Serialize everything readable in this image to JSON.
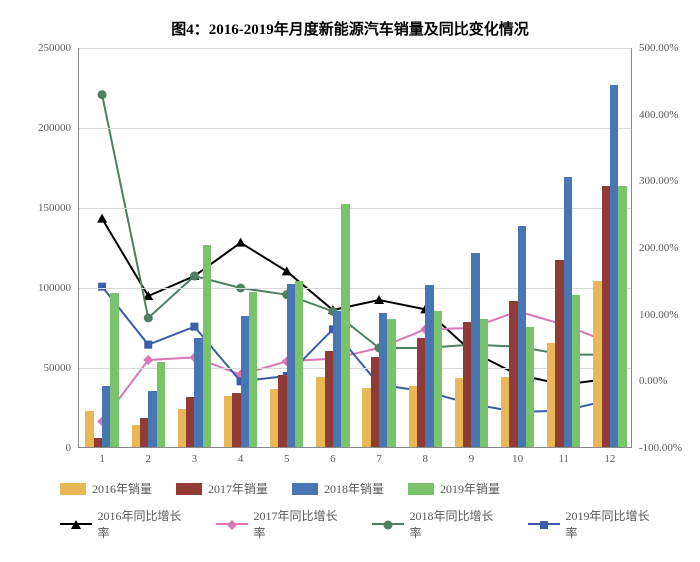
{
  "title": "图4：2016-2019年月度新能源汽车销量及同比变化情况",
  "title_fontsize": 15,
  "background_color": "#ffffff",
  "grid_color": "#d9d9d9",
  "axis_color": "#888888",
  "text_color": "#595959",
  "axis_fontsize": 11,
  "legend_fontsize": 12,
  "chart": {
    "type": "bar+line",
    "categories": [
      "1",
      "2",
      "3",
      "4",
      "5",
      "6",
      "7",
      "8",
      "9",
      "10",
      "11",
      "12"
    ],
    "y_left": {
      "min": 0,
      "max": 250000,
      "step": 50000
    },
    "y_right": {
      "min": -100,
      "max": 500,
      "step": 100,
      "suffix": ".00%"
    },
    "bar_series": [
      {
        "name": "2016年销量",
        "color": "#e8b756",
        "values": [
          22500,
          14000,
          24000,
          32000,
          36000,
          44000,
          37000,
          38000,
          43000,
          44000,
          65000,
          104000
        ]
      },
      {
        "name": "2017年销量",
        "color": "#903b35",
        "values": [
          5500,
          18000,
          31000,
          34000,
          45000,
          60000,
          56000,
          68000,
          78000,
          91000,
          117000,
          163000
        ]
      },
      {
        "name": "2018年销量",
        "color": "#4876b3",
        "values": [
          38000,
          35000,
          68000,
          82000,
          102000,
          85000,
          84000,
          101000,
          121000,
          138000,
          169000,
          226000
        ]
      },
      {
        "name": "2019年销量",
        "color": "#78c36b",
        "values": [
          96000,
          53000,
          126000,
          97000,
          104000,
          152000,
          80000,
          85000,
          80000,
          75000,
          95000,
          163000
        ]
      }
    ],
    "line_series": [
      {
        "name": "2016年同比增长率",
        "color": "#000000",
        "marker": "triangle",
        "values": [
          244,
          128,
          158,
          208,
          165,
          107,
          122,
          108,
          45,
          10,
          -5,
          4
        ]
      },
      {
        "name": "2017年同比增长率",
        "color": "#d976b3",
        "marker": "diamond",
        "values": [
          -60,
          32,
          36,
          10,
          30,
          34,
          50,
          78,
          80,
          105,
          85,
          58
        ]
      },
      {
        "name": "2018年同比增长率",
        "color": "#4f8062",
        "marker": "circle",
        "values": [
          430,
          95,
          158,
          140,
          130,
          105,
          50,
          50,
          55,
          52,
          40,
          40
        ]
      },
      {
        "name": "2019年同比增长率",
        "color": "#3c5da6",
        "marker": "square",
        "values": [
          142,
          55,
          82,
          0,
          8,
          78,
          -5,
          -15,
          -34,
          -46,
          -44,
          -28
        ]
      }
    ],
    "bar_group_width": 0.72,
    "legend": {
      "bars": [
        "2016年销量",
        "2017年销量",
        "2018年销量",
        "2019年销量"
      ],
      "lines": [
        "2016年同比增长率",
        "2017年同比增长率",
        "2018年同比增长率",
        "2019年同比增长率"
      ]
    }
  }
}
